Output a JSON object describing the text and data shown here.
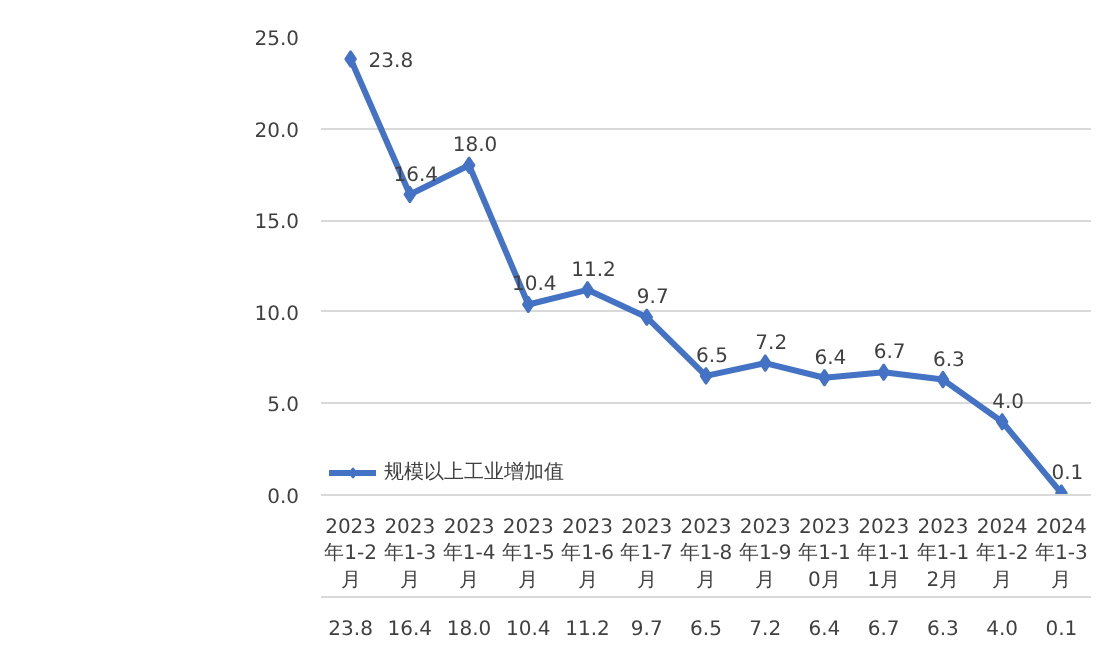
{
  "chart_data": {
    "type": "line",
    "categories": [
      "2023年1-2月",
      "2023年1-3月",
      "2023年1-4月",
      "2023年1-5月",
      "2023年1-6月",
      "2023年1-7月",
      "2023年1-8月",
      "2023年1-9月",
      "2023年1-10月",
      "2023年1-11月",
      "2023年1-12月",
      "2024年1-2月",
      "2024年1-3月"
    ],
    "series": [
      {
        "name": "规模以上工业增加值",
        "color": "#4472c4",
        "values": [
          23.8,
          16.4,
          18.0,
          10.4,
          11.2,
          9.7,
          6.5,
          7.2,
          6.4,
          6.7,
          6.3,
          4.0,
          0.1
        ],
        "value_labels": [
          "23.8",
          "16.4",
          "18.0",
          "10.4",
          "11.2",
          "9.7",
          "6.5",
          "7.2",
          "6.4",
          "6.7",
          "6.3",
          "4.0",
          "0.1"
        ]
      }
    ],
    "ylim": [
      0,
      25
    ],
    "yticks": [
      {
        "value": 0,
        "label": "0.0"
      },
      {
        "value": 5,
        "label": "5.0"
      },
      {
        "value": 10,
        "label": "10.0"
      },
      {
        "value": 15,
        "label": "15.0"
      },
      {
        "value": 20,
        "label": "20.0"
      },
      {
        "value": 25,
        "label": "25.0"
      }
    ],
    "grid": "y",
    "legend": "bottom left",
    "marker": "diamond",
    "line_style": "solid",
    "data_labels": true
  }
}
